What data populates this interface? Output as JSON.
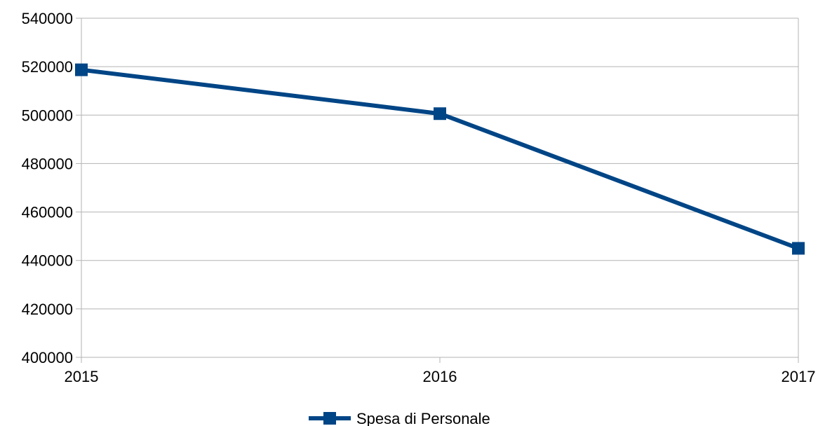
{
  "chart_data": {
    "type": "line",
    "title": "",
    "xlabel": "",
    "ylabel": "",
    "categories": [
      "2015",
      "2016",
      "2017"
    ],
    "series": [
      {
        "name": "Spesa di Personale",
        "values": [
          518700,
          500600,
          445000
        ],
        "color": "#004586",
        "marker": "square"
      }
    ],
    "ylim": [
      400000,
      540000
    ],
    "yticks": [
      "540000",
      "520000",
      "500000",
      "480000",
      "460000",
      "440000",
      "420000",
      "400000"
    ],
    "grid": true,
    "legend": "bottom-center"
  }
}
